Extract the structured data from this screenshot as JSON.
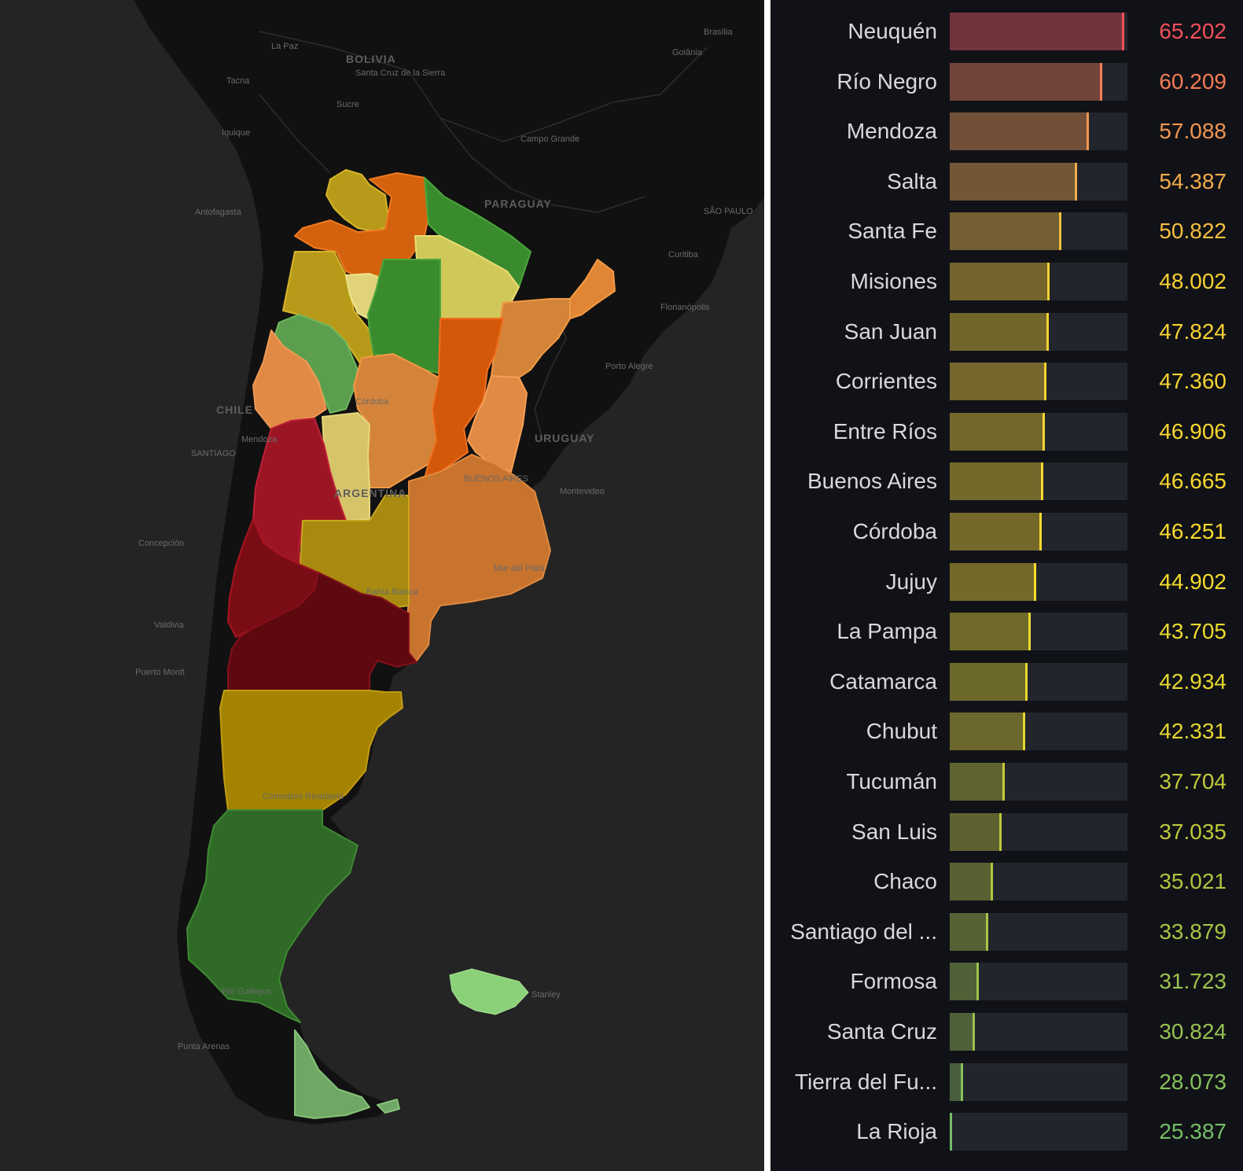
{
  "map": {
    "countries": {
      "bolivia": "BOLIVIA",
      "paraguay": "PARAGUAY",
      "uruguay": "URUGUAY",
      "chile": "CHILE",
      "argentina": "ARGENTINA"
    },
    "cities": {
      "la_paz": "La Paz",
      "brasilia": "Brasília",
      "goiania": "Goiânia",
      "tacna": "Tacna",
      "santa_cruz": "Santa Cruz de la Sierra",
      "sucre": "Sucre",
      "iquique": "Iquique",
      "campo_grande": "Campo Grande",
      "antofagasta": "Antofagasta",
      "sao_paulo": "SÃO PAULO",
      "curitiba": "Curitiba",
      "florianopolis": "Florianópolis",
      "porto_alegre": "Porto Alegre",
      "santiago": "SANTIAGO",
      "mendoza": "Mendoza",
      "cordoba": "Córdoba",
      "buenos_aires": "BUENOS AIRES",
      "montevideo": "Montevideo",
      "concepcion": "Concepción",
      "mar_del_plata": "Mar del Plata",
      "bahia_blanca": "Bahía Blanca",
      "valdivia": "Valdivia",
      "puerto_montt": "Puerto Montt",
      "comodoro": "Comodoro Rivadavia",
      "rio_gallegos": "Río Gallegos",
      "stanley": "Stanley",
      "punta_arenas": "Punta Arenas"
    },
    "colors": {
      "background": "#242424",
      "land": "#111111"
    }
  },
  "chart_data": {
    "type": "bar",
    "orientation": "horizontal",
    "xlim": [
      25,
      66
    ],
    "categories": [
      "Neuquén",
      "Río Negro",
      "Mendoza",
      "Salta",
      "Santa Fe",
      "Misiones",
      "San Juan",
      "Corrientes",
      "Entre Ríos",
      "Buenos Aires",
      "Córdoba",
      "Jujuy",
      "La Pampa",
      "Catamarca",
      "Chubut",
      "Tucumán",
      "San Luis",
      "Chaco",
      "Santiago del ...",
      "Formosa",
      "Santa Cruz",
      "Tierra del Fu...",
      "La Rioja"
    ],
    "values": [
      65.202,
      60.209,
      57.088,
      54.387,
      50.822,
      48.002,
      47.824,
      47.36,
      46.906,
      46.665,
      46.251,
      44.902,
      43.705,
      42.934,
      42.331,
      37.704,
      37.035,
      35.021,
      33.879,
      31.723,
      30.824,
      28.073,
      25.387
    ],
    "value_labels": [
      "65.202",
      "60.209",
      "57.088",
      "54.387",
      "50.822",
      "48.002",
      "47.824",
      "47.360",
      "46.906",
      "46.665",
      "46.251",
      "44.902",
      "43.705",
      "42.934",
      "42.331",
      "37.704",
      "37.035",
      "35.021",
      "33.879",
      "31.723",
      "30.824",
      "28.073",
      "25.387"
    ],
    "colors": {
      "panel_background": "#111217",
      "track": "#22252b",
      "label_text": "#d8d9da",
      "scale": [
        "#73bf69",
        "#b2c53f",
        "#fade2a",
        "#f2a34f",
        "#f2495c"
      ]
    }
  }
}
